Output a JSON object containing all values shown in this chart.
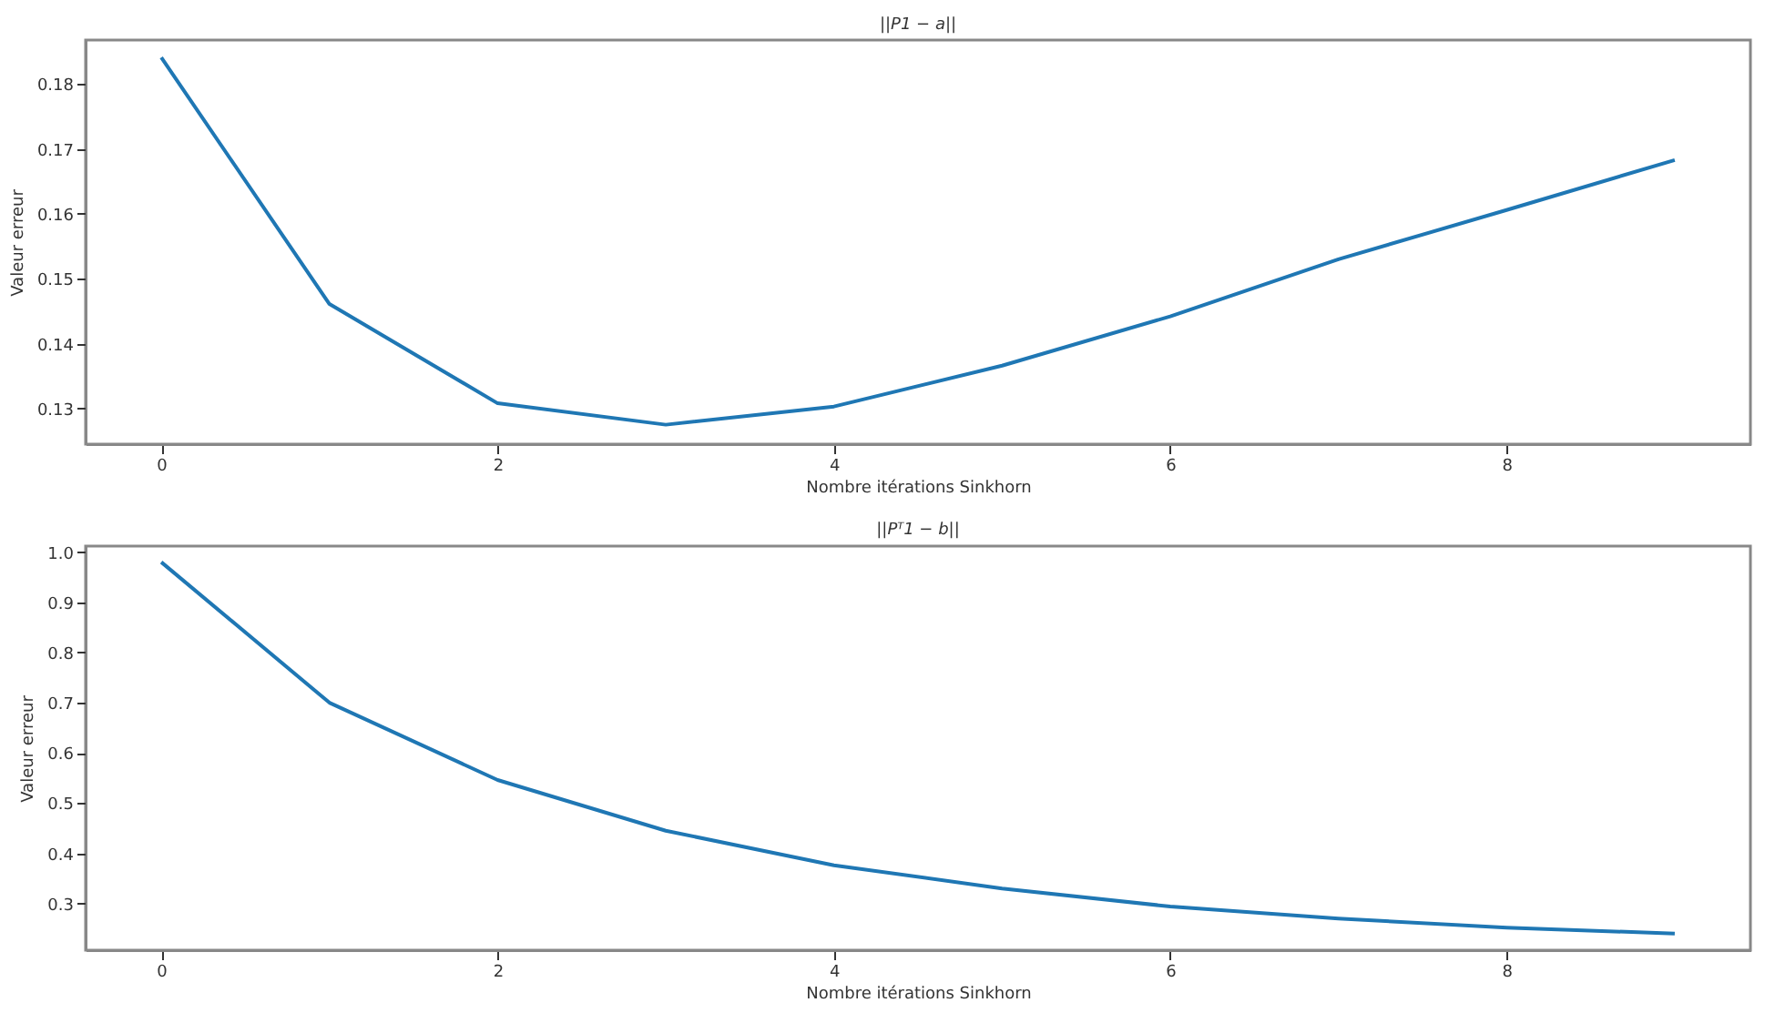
{
  "chart_data": [
    {
      "type": "line",
      "title": "||P1 − a||",
      "xlabel": "Nombre itérations Sinkhorn",
      "ylabel": "Valeur erreur",
      "x": [
        0,
        1,
        2,
        3,
        4,
        5,
        6,
        7,
        8,
        9
      ],
      "series": [
        {
          "color": "#1f77b4",
          "values": [
            0.1841,
            0.1461,
            0.1308,
            0.1275,
            0.1303,
            0.1366,
            0.1442,
            0.153,
            0.1606,
            0.1683
          ]
        }
      ],
      "xlim": [
        -0.45,
        9.45
      ],
      "xticks": [
        0,
        2,
        4,
        6,
        8
      ],
      "ylim": [
        0.1245,
        0.1868
      ],
      "yticks": [
        0.13,
        0.14,
        0.15,
        0.16,
        0.17,
        0.18
      ],
      "grid": false,
      "marker": "none",
      "line_style": "solid"
    },
    {
      "type": "line",
      "title": "||Pᵀ1 − b||",
      "xlabel": "Nombre itérations Sinkhorn",
      "ylabel": "Valeur erreur",
      "x": [
        0,
        1,
        2,
        3,
        4,
        5,
        6,
        7,
        8,
        9
      ],
      "series": [
        {
          "color": "#1f77b4",
          "values": [
            0.98,
            0.7,
            0.546,
            0.445,
            0.376,
            0.33,
            0.294,
            0.27,
            0.252,
            0.24
          ]
        }
      ],
      "xlim": [
        -0.45,
        9.45
      ],
      "xticks": [
        0,
        2,
        4,
        6,
        8
      ],
      "ylim": [
        0.207,
        1.012
      ],
      "yticks": [
        0.3,
        0.4,
        0.5,
        0.6,
        0.7,
        0.8,
        0.9,
        {
          "value": 1,
          "label": "1.0"
        }
      ],
      "grid": false,
      "marker": "none",
      "line_style": "solid"
    }
  ]
}
